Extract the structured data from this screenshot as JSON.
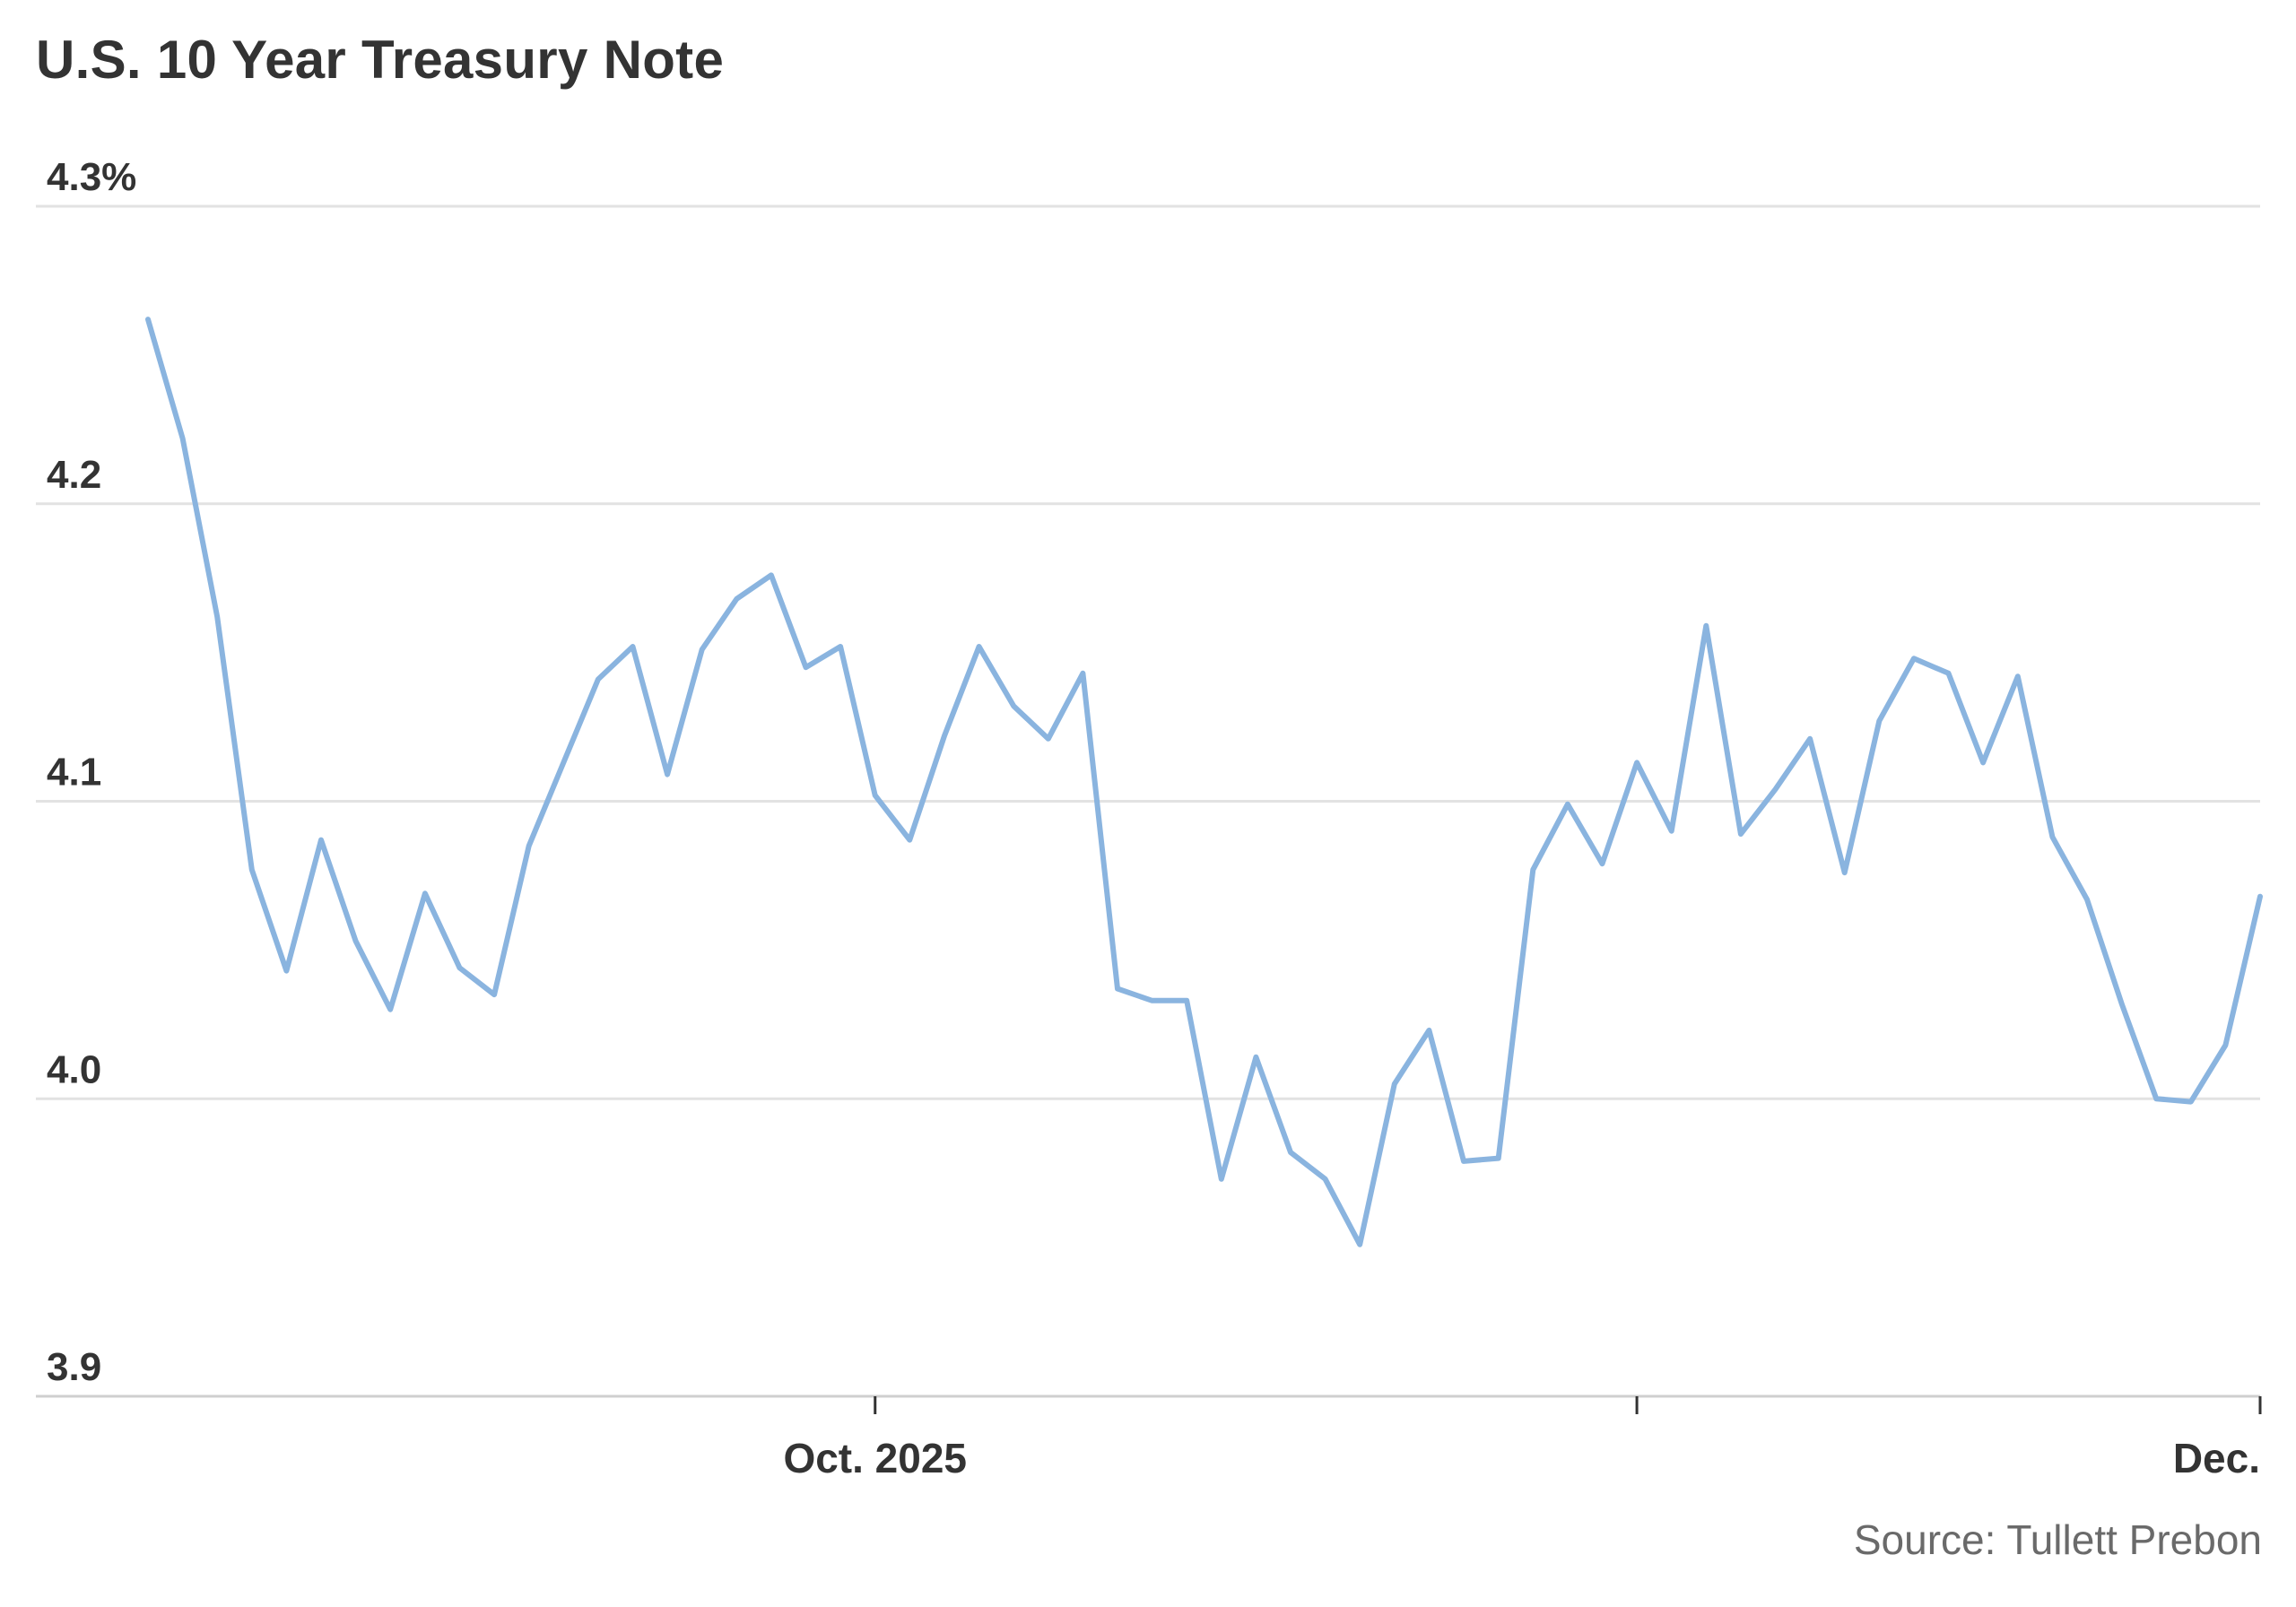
{
  "chart_data": {
    "type": "line",
    "title": "U.S. 10 Year Treasury Note",
    "source": "Source: Tullett Prebon",
    "xlabel": "",
    "ylabel": "",
    "ylim": [
      3.9,
      4.3
    ],
    "y_ticks": [
      {
        "value": 4.3,
        "label": "4.3%"
      },
      {
        "value": 4.2,
        "label": "4.2"
      },
      {
        "value": 4.1,
        "label": "4.1"
      },
      {
        "value": 4.0,
        "label": "4.0"
      },
      {
        "value": 3.9,
        "label": "3.9"
      }
    ],
    "x_ticks": [
      {
        "index": 21,
        "label": "Oct. 2025"
      },
      {
        "index": 43,
        "label": ""
      },
      {
        "index": 61,
        "label": "Dec."
      }
    ],
    "grid": true,
    "series": [
      {
        "color": "#8ab4df",
        "values": [
          4.262,
          4.222,
          4.162,
          4.077,
          4.043,
          4.087,
          4.053,
          4.03,
          4.069,
          4.044,
          4.035,
          4.085,
          4.113,
          4.141,
          4.152,
          4.109,
          4.151,
          4.168,
          4.176,
          4.145,
          4.152,
          4.102,
          4.087,
          4.122,
          4.152,
          4.132,
          4.121,
          4.143,
          4.037,
          4.033,
          4.033,
          3.973,
          4.014,
          3.982,
          3.973,
          3.951,
          4.005,
          4.023,
          3.979,
          3.98,
          4.077,
          4.099,
          4.079,
          4.113,
          4.09,
          4.159,
          4.089,
          4.104,
          4.121,
          4.076,
          4.127,
          4.148,
          4.143,
          4.113,
          4.142,
          4.088,
          4.067,
          4.032,
          4.0,
          3.999,
          4.018,
          4.068
        ]
      }
    ]
  }
}
